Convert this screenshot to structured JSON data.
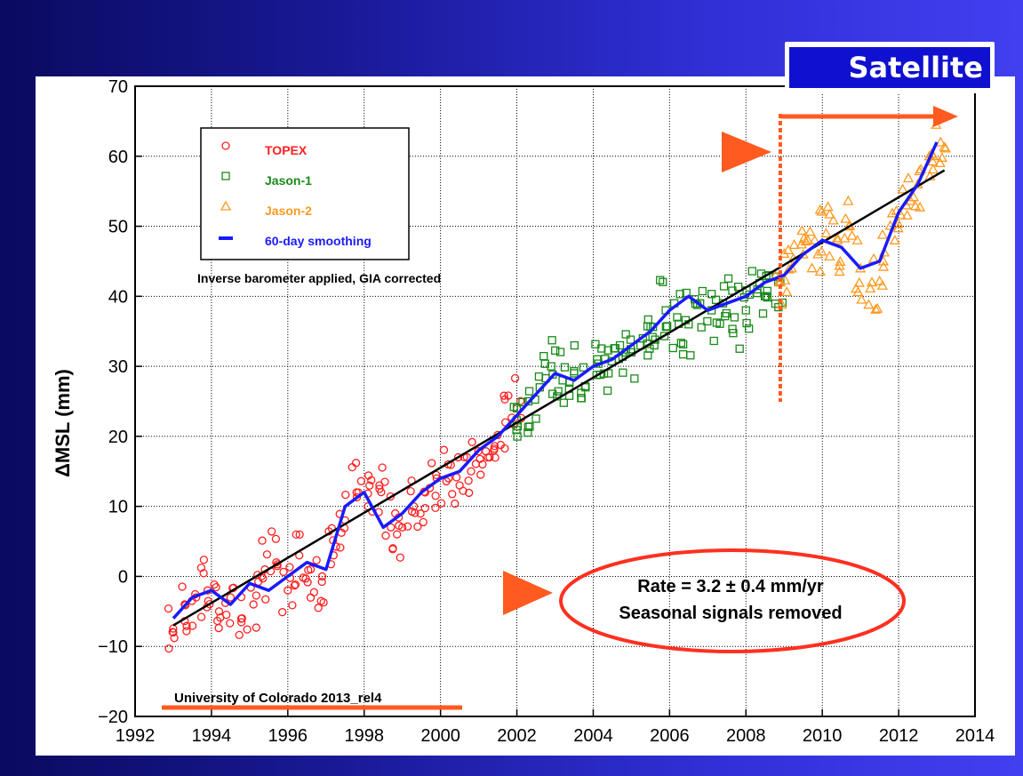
{
  "badge": {
    "label": "Satellite"
  },
  "legend": {
    "entries": [
      {
        "label": "TOPEX",
        "marker": "circle",
        "color": "#ff2020"
      },
      {
        "label": "Jason-1",
        "marker": "square",
        "color": "#1a8a1a"
      },
      {
        "label": "Jason-2",
        "marker": "triangle",
        "color": "#ff9a20"
      },
      {
        "label": "60-day smoothing",
        "marker": "line",
        "color": "#1a1aff"
      }
    ],
    "note": "Inverse barometer applied, GIA corrected"
  },
  "annotations": {
    "rate": "Rate = 3.2 ± 0.4 mm/yr",
    "seasonal": "Seasonal signals removed",
    "credit": "University of Colorado 2013_rel4"
  },
  "colors": {
    "accent_arrow": "#ff5a20",
    "ellipse": "#ff3020",
    "trend": "#000000"
  },
  "chart_data": {
    "type": "scatter",
    "ylabel": "ΔMSL (mm)",
    "xlim": [
      1992,
      2014
    ],
    "ylim": [
      -20,
      70
    ],
    "xticks": [
      1992,
      1994,
      1996,
      1998,
      2000,
      2002,
      2004,
      2006,
      2008,
      2010,
      2012,
      2014
    ],
    "yticks": [
      -20,
      -10,
      0,
      10,
      20,
      30,
      40,
      50,
      60,
      70
    ],
    "grid": true,
    "legend_position": "top-left",
    "trend_line": {
      "x": [
        1993.0,
        2013.2
      ],
      "y": [
        -7,
        58
      ]
    },
    "divider_x": 2008.9,
    "series": [
      {
        "name": "TOPEX",
        "x": [
          1993.0,
          1993.3,
          1993.6,
          1993.9,
          1994.2,
          1994.5,
          1994.8,
          1995.1,
          1995.4,
          1995.7,
          1996.0,
          1996.3,
          1996.6,
          1996.9,
          1997.2,
          1997.5,
          1997.8,
          1998.1,
          1998.4,
          1998.7,
          1999.0,
          1999.3,
          1999.6,
          1999.9,
          2000.2,
          2000.5,
          2000.8,
          2001.1,
          2001.4,
          2001.7,
          2002.0
        ],
        "y": [
          -8,
          -4,
          -3,
          -2,
          -5,
          -3,
          -6,
          -4,
          1,
          2,
          -2,
          3,
          1,
          0,
          3,
          8,
          12,
          10,
          13,
          7,
          7,
          10,
          12,
          14,
          16,
          13,
          15,
          16,
          18,
          22,
          24
        ]
      },
      {
        "name": "Jason-1",
        "x": [
          2002.0,
          2002.3,
          2002.6,
          2002.9,
          2003.2,
          2003.5,
          2003.8,
          2004.1,
          2004.4,
          2004.7,
          2005.0,
          2005.3,
          2005.6,
          2005.9,
          2006.2,
          2006.5,
          2006.8,
          2007.1,
          2007.4,
          2007.7,
          2008.0,
          2008.3,
          2008.6,
          2008.9
        ],
        "y": [
          24,
          25,
          27,
          30,
          28,
          29,
          27,
          31,
          29,
          33,
          32,
          34,
          33,
          38,
          37,
          36,
          39,
          38,
          39,
          37,
          38,
          41,
          43,
          42
        ]
      },
      {
        "name": "Jason-2",
        "x": [
          2008.9,
          2009.2,
          2009.5,
          2009.8,
          2010.1,
          2010.4,
          2010.7,
          2011.0,
          2011.3,
          2011.6,
          2011.9,
          2012.2,
          2012.5,
          2012.8,
          2013.1
        ],
        "y": [
          42,
          44,
          46,
          48,
          49,
          48,
          50,
          44,
          42,
          45,
          48,
          53,
          56,
          60,
          62
        ]
      },
      {
        "name": "60-day smoothing",
        "x": [
          1993.0,
          1993.5,
          1994.0,
          1994.5,
          1995.0,
          1995.5,
          1996.0,
          1996.5,
          1997.0,
          1997.5,
          1998.0,
          1998.5,
          1999.0,
          1999.5,
          2000.0,
          2000.5,
          2001.0,
          2001.5,
          2002.0,
          2002.5,
          2003.0,
          2003.5,
          2004.0,
          2004.5,
          2005.0,
          2005.5,
          2006.0,
          2006.5,
          2007.0,
          2007.5,
          2008.0,
          2008.5,
          2009.0,
          2009.5,
          2010.0,
          2010.5,
          2011.0,
          2011.5,
          2012.0,
          2012.5,
          2013.0
        ],
        "y": [
          -6,
          -3,
          -2,
          -4,
          -1,
          -2,
          0,
          2,
          1,
          10,
          12,
          7,
          9,
          12,
          14,
          15,
          18,
          20,
          23,
          26,
          29,
          28,
          30,
          31,
          33,
          35,
          38,
          40,
          38,
          39,
          40,
          42,
          43,
          46,
          48,
          47,
          44,
          45,
          52,
          56,
          62
        ]
      }
    ]
  }
}
